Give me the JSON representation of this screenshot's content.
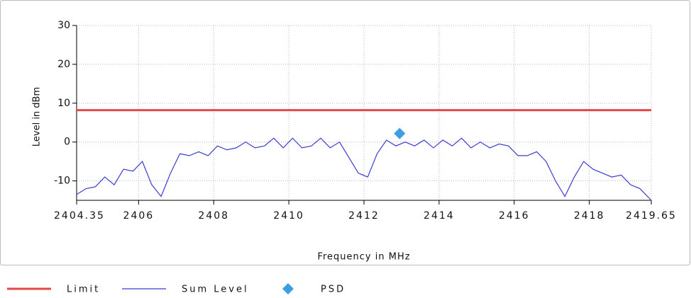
{
  "chart_data": {
    "type": "line",
    "xlabel": "Frequency in MHz",
    "ylabel": "Level in dBm",
    "xlim": [
      2404.35,
      2419.65
    ],
    "xticks": [
      2404.35,
      2406,
      2408,
      2410,
      2412,
      2414,
      2416,
      2418,
      2419.65
    ],
    "ylim": [
      -15,
      30
    ],
    "yticks": [
      -10,
      0,
      10,
      20,
      30
    ],
    "grid": true,
    "series": [
      {
        "name": "Limit",
        "color": "#e8474a",
        "x": [
          2404.35,
          2419.65
        ],
        "values": [
          8.2,
          8.2
        ]
      },
      {
        "name": "Sum Level",
        "color": "#3a3dd0",
        "x": [
          2404.35,
          2404.6,
          2404.85,
          2405.1,
          2405.35,
          2405.6,
          2405.85,
          2406.1,
          2406.35,
          2406.6,
          2406.85,
          2407.1,
          2407.35,
          2407.6,
          2407.85,
          2408.1,
          2408.35,
          2408.6,
          2408.85,
          2409.1,
          2409.35,
          2409.6,
          2409.85,
          2410.1,
          2410.35,
          2410.6,
          2410.85,
          2411.1,
          2411.35,
          2411.6,
          2411.85,
          2412.1,
          2412.35,
          2412.6,
          2412.85,
          2413.1,
          2413.35,
          2413.6,
          2413.85,
          2414.1,
          2414.35,
          2414.6,
          2414.85,
          2415.1,
          2415.35,
          2415.6,
          2415.85,
          2416.1,
          2416.35,
          2416.6,
          2416.85,
          2417.1,
          2417.35,
          2417.6,
          2417.85,
          2418.1,
          2418.35,
          2418.6,
          2418.85,
          2419.1,
          2419.35,
          2419.65
        ],
        "values": [
          -13.5,
          -12,
          -11.5,
          -9,
          -11,
          -7,
          -7.5,
          -5,
          -11,
          -14,
          -8,
          -3,
          -3.5,
          -2.5,
          -3.5,
          -1,
          -2,
          -1.5,
          0,
          -1.5,
          -1,
          1,
          -1.5,
          1,
          -1.5,
          -1,
          1,
          -1.5,
          0,
          -4,
          -8,
          -9,
          -3,
          0.5,
          -1,
          0,
          -1,
          0.5,
          -1.5,
          0.5,
          -1,
          1,
          -1.5,
          0,
          -1.5,
          -0.5,
          -1,
          -3.5,
          -3.5,
          -2.5,
          -5,
          -10,
          -14,
          -9,
          -5,
          -7,
          -8,
          -9,
          -8.5,
          -11,
          -12,
          -15
        ]
      },
      {
        "name": "PSD",
        "color": "#3d9ee0",
        "marker": "diamond",
        "x": [
          2412.95
        ],
        "values": [
          2.2
        ]
      }
    ]
  }
}
